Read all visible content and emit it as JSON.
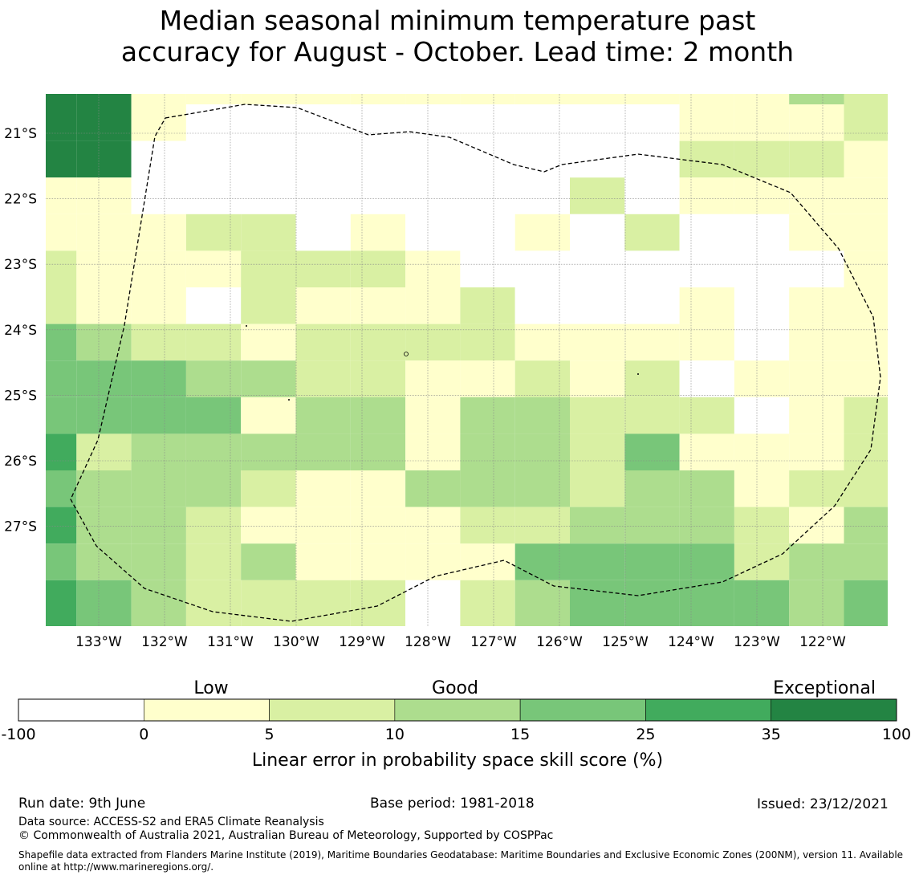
{
  "title": {
    "line1": "Median seasonal minimum temperature past",
    "line2": "accuracy for August - October. Lead time: 2 month"
  },
  "map": {
    "lon_ticks": [
      "133°W",
      "132°W",
      "131°W",
      "130°W",
      "129°W",
      "128°W",
      "127°W",
      "126°W",
      "125°W",
      "124°W",
      "123°W",
      "122°W"
    ],
    "lat_ticks": [
      "21°S",
      "22°S",
      "23°S",
      "24°S",
      "25°S",
      "26°S",
      "27°S"
    ],
    "boundary_style": "dashed",
    "grid": true
  },
  "chart_data": {
    "type": "heatmap",
    "description_of_classes": "skill score class index per cell: 0 = -100..0, 1 = 0..5, 2 = 5..10, 3 = 10..15, 4 = 15..25, 5 = 25..35, 6 = 35..100",
    "cols": 16,
    "rows": 15,
    "grid": [
      [
        6,
        6,
        1,
        1,
        1,
        1,
        1,
        1,
        1,
        1,
        1,
        1,
        1,
        1,
        3,
        2
      ],
      [
        6,
        6,
        1,
        0,
        0,
        0,
        0,
        0,
        0,
        0,
        0,
        0,
        1,
        1,
        1,
        2
      ],
      [
        6,
        6,
        0,
        0,
        0,
        0,
        0,
        0,
        0,
        0,
        0,
        0,
        2,
        2,
        2,
        1
      ],
      [
        1,
        1,
        0,
        0,
        0,
        0,
        0,
        0,
        0,
        0,
        2,
        0,
        1,
        1,
        1,
        1
      ],
      [
        1,
        1,
        1,
        2,
        2,
        0,
        1,
        0,
        0,
        1,
        0,
        2,
        0,
        0,
        1,
        1
      ],
      [
        2,
        1,
        1,
        1,
        2,
        2,
        2,
        1,
        0,
        0,
        0,
        0,
        0,
        0,
        0,
        1
      ],
      [
        2,
        1,
        1,
        0,
        2,
        1,
        1,
        1,
        2,
        0,
        0,
        0,
        1,
        0,
        1,
        1
      ],
      [
        4,
        3,
        2,
        2,
        1,
        2,
        2,
        2,
        2,
        1,
        1,
        1,
        1,
        0,
        1,
        1
      ],
      [
        4,
        4,
        4,
        3,
        3,
        2,
        2,
        1,
        1,
        2,
        1,
        2,
        0,
        1,
        1,
        1
      ],
      [
        4,
        4,
        4,
        4,
        1,
        3,
        3,
        1,
        3,
        3,
        2,
        2,
        2,
        0,
        1,
        2
      ],
      [
        5,
        2,
        3,
        3,
        3,
        3,
        3,
        1,
        3,
        3,
        2,
        4,
        1,
        1,
        1,
        2
      ],
      [
        4,
        3,
        3,
        3,
        2,
        1,
        1,
        3,
        3,
        3,
        2,
        3,
        3,
        1,
        2,
        2
      ],
      [
        5,
        3,
        3,
        2,
        1,
        1,
        1,
        1,
        2,
        2,
        3,
        3,
        3,
        2,
        1,
        3
      ],
      [
        4,
        3,
        3,
        2,
        3,
        1,
        1,
        1,
        1,
        4,
        4,
        4,
        4,
        2,
        3,
        3
      ],
      [
        5,
        4,
        3,
        2,
        2,
        2,
        2,
        0,
        2,
        3,
        4,
        4,
        4,
        4,
        3,
        4
      ]
    ],
    "colorbar": {
      "boundaries": [
        "-100",
        "0",
        "5",
        "10",
        "15",
        "25",
        "35",
        "100"
      ],
      "colors": [
        "#ffffff",
        "#ffffcc",
        "#d9f0a3",
        "#addd8e",
        "#78c679",
        "#41ab5d",
        "#238443"
      ],
      "category_labels": [
        "Low",
        "Good",
        "Exceptional"
      ],
      "label": "Linear error in probability space skill score (%)"
    }
  },
  "footer": {
    "run_date": "Run date: 9th June",
    "base_period": "Base period: 1981-2018",
    "issued": "Issued: 23/12/2021",
    "data_source": "Data source: ACCESS-S2 and ERA5 Climate Reanalysis",
    "copyright": "© Commonwealth of Australia 2021, Australian Bureau of Meteorology, Supported by COSPPac",
    "shapefile": "Shapefile data extracted from Flanders Marine Institute (2019), Maritime Boundaries Geodatabase: Maritime Boundaries and Exclusive Economic Zones (200NM), version 11. Available online at http://www.marineregions.org/."
  }
}
